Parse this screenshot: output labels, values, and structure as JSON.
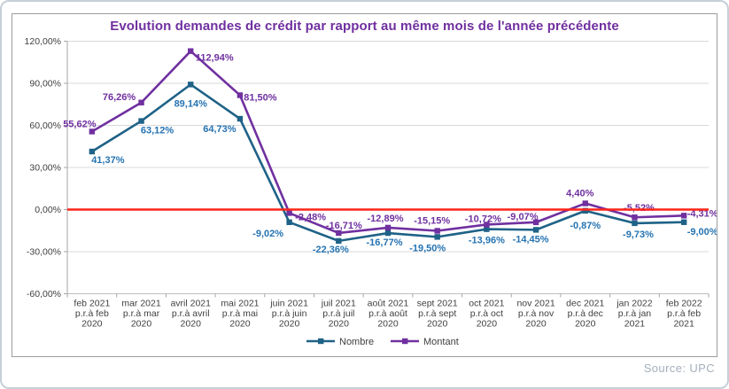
{
  "chart_data": {
    "type": "line",
    "title": "Evolution demandes de crédit par rapport au même mois de l'année précédente",
    "title_color": "#7030a0",
    "categories": [
      [
        "feb 2021",
        "p.r.à feb",
        "2020"
      ],
      [
        "mar 2021",
        "p.r.à mar",
        "2020"
      ],
      [
        "avril 2021",
        "p.r.à avril",
        "2020"
      ],
      [
        "mai 2021",
        "p.r.à mai",
        "2020"
      ],
      [
        "juin 2021",
        "p.r.à juin",
        "2020"
      ],
      [
        "juil 2021",
        "p.r.à juil",
        "2020"
      ],
      [
        "août 2021",
        "p.r.à août",
        "2020"
      ],
      [
        "sept 2021",
        "p.r.à sept",
        "2020"
      ],
      [
        "oct 2021",
        "p.r.à oct",
        "2020"
      ],
      [
        "nov 2021",
        "p.r.à nov",
        "2020"
      ],
      [
        "dec 2021",
        "p.r.à dec",
        "2020"
      ],
      [
        "jan 2022",
        "p.r.à jan",
        "2021"
      ],
      [
        "feb 2022",
        "p.r.à feb",
        "2021"
      ]
    ],
    "series": [
      {
        "name": "Nombre",
        "color": "#1f6287",
        "label_color": "#2573b2",
        "values": [
          41.37,
          63.12,
          89.14,
          64.73,
          -9.02,
          -22.36,
          -16.77,
          -19.5,
          -13.96,
          -14.45,
          -0.87,
          -9.73,
          -9.0
        ],
        "labels": [
          "41,37%",
          "63,12%",
          "89,14%",
          "64,73%",
          "-9,02%",
          "-22,36%",
          "-16,77%",
          "-19,50%",
          "-13,96%",
          "-14,45%",
          "-0,87%",
          "-9,73%",
          "-9,00%"
        ]
      },
      {
        "name": "Montant",
        "color": "#7030a0",
        "label_color": "#7030a0",
        "values": [
          55.62,
          76.26,
          112.94,
          81.5,
          -2.48,
          -16.71,
          -12.89,
          -15.15,
          -10.72,
          -9.07,
          4.4,
          -5.52,
          -4.31
        ],
        "labels": [
          "55,62%",
          "76,26%",
          "112,94%",
          "81,50%",
          "-2,48%",
          "-16,71%",
          "-12,89%",
          "-15,15%",
          "-10,72%",
          "-9,07%",
          "4,40%",
          "-5,52%",
          "-4,31%"
        ]
      }
    ],
    "y_axis": {
      "ticks": [
        "120,00%",
        "90,00%",
        "60,00%",
        "30,00%",
        "0,00%",
        "-30,00%",
        "-60,00%"
      ],
      "tick_values": [
        120,
        90,
        60,
        30,
        0,
        -30,
        -60
      ],
      "ylim": [
        -60,
        120
      ]
    },
    "zero_line_color": "#ff2418",
    "grid": true,
    "gridline_color": "#d9d9d9",
    "axis_color": "#a6a6a6",
    "axis_text_color": "#404040",
    "legend_position": "bottom"
  },
  "footer": {
    "source_label": "Source: UPC"
  }
}
